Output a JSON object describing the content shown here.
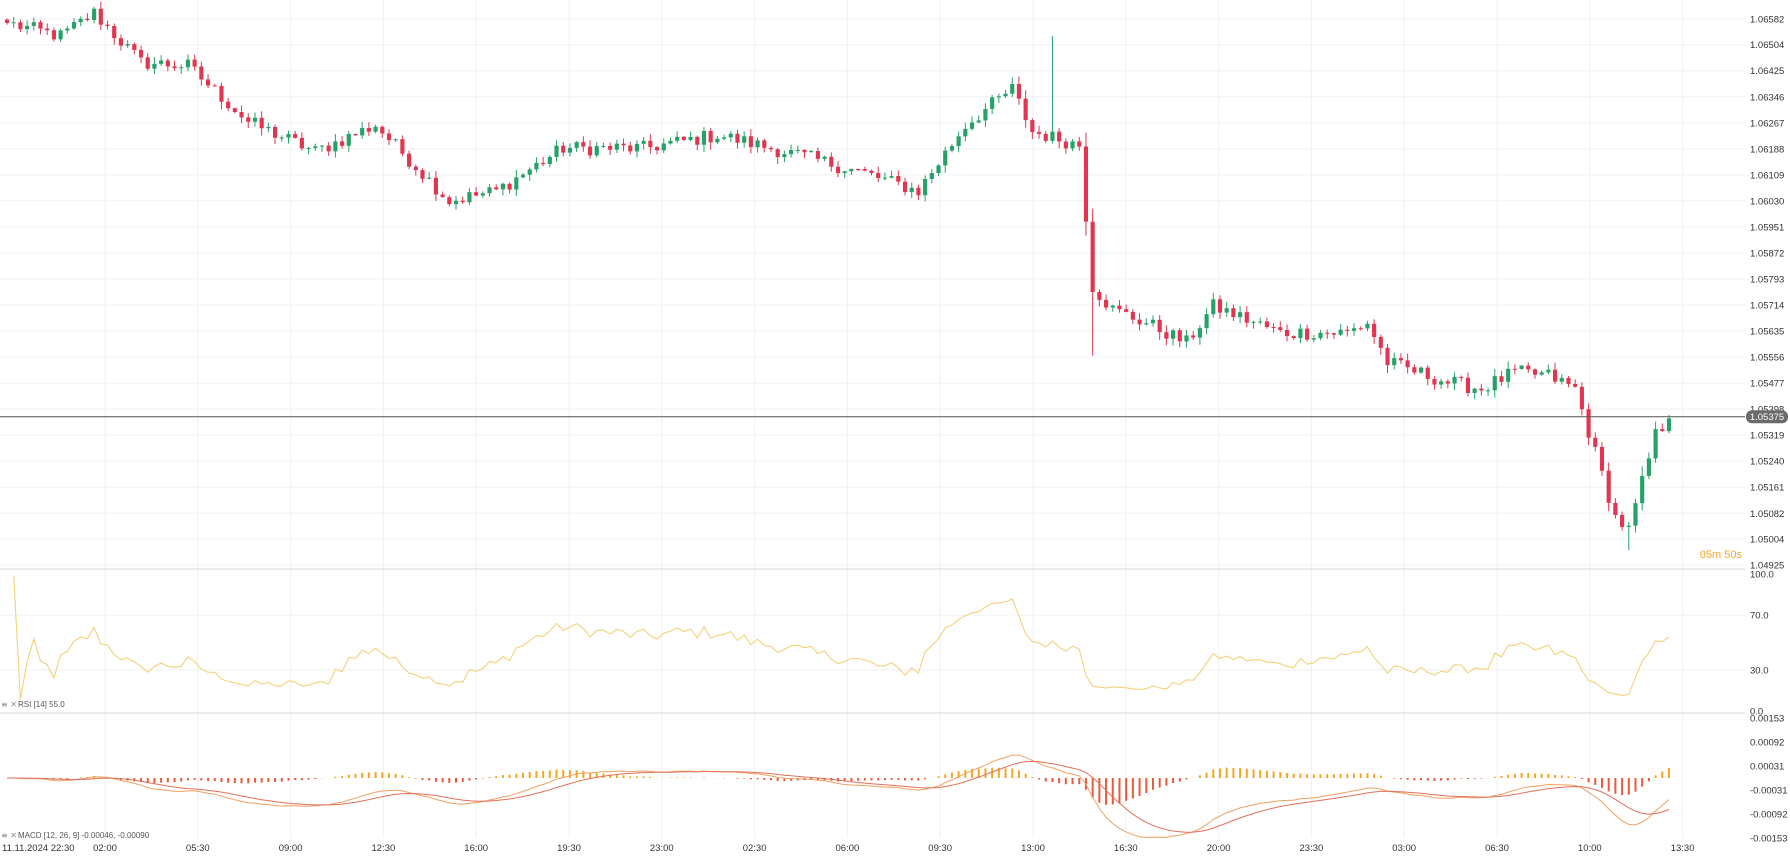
{
  "chart_data": [
    {
      "type": "candlestick",
      "title": "",
      "current_price": "1.05375",
      "countdown": "05m 50s",
      "price_axis_labels": [
        "1.06582",
        "1.06504",
        "1.06425",
        "1.06346",
        "1.06267",
        "1.06188",
        "1.06109",
        "1.06030",
        "1.05951",
        "1.05872",
        "1.05793",
        "1.05714",
        "1.05635",
        "1.05556",
        "1.05477",
        "1.05398",
        "1.05319",
        "1.05240",
        "1.05161",
        "1.05082",
        "1.05004",
        "1.04925"
      ],
      "ylim": [
        1.04925,
        1.06582
      ],
      "x_axis_labels": [
        "11.11.2024  22:30",
        "02:00",
        "05:30",
        "09:00",
        "12:30",
        "16:00",
        "19:30",
        "23:00",
        "02:30",
        "06:00",
        "09:30",
        "13:00",
        "16:30",
        "20:00",
        "23:30",
        "03:00",
        "06:30",
        "10:00",
        "13:30"
      ],
      "colors": {
        "up": "#26a269",
        "down": "#e0364f",
        "current_line": "#555555",
        "countdown": "#f5a623"
      },
      "anchors": [
        [
          0,
          1.0657
        ],
        [
          8,
          1.0653
        ],
        [
          13,
          1.066
        ],
        [
          20,
          1.0645
        ],
        [
          27,
          1.0644
        ],
        [
          36,
          1.0627
        ],
        [
          46,
          1.0618
        ],
        [
          55,
          1.0626
        ],
        [
          66,
          1.0603
        ],
        [
          73,
          1.0606
        ],
        [
          83,
          1.0619
        ],
        [
          95,
          1.0619
        ],
        [
          106,
          1.0623
        ],
        [
          118,
          1.0617
        ],
        [
          127,
          1.0612
        ],
        [
          136,
          1.0606
        ],
        [
          143,
          1.0626
        ],
        [
          150,
          1.0637
        ],
        [
          153,
          1.0624
        ],
        [
          160,
          1.062
        ],
        [
          162,
          1.0577
        ],
        [
          165,
          1.057
        ],
        [
          170,
          1.0566
        ],
        [
          176,
          1.056
        ],
        [
          180,
          1.0571
        ],
        [
          190,
          1.0563
        ],
        [
          200,
          1.0563
        ],
        [
          203,
          1.0566
        ],
        [
          206,
          1.0554
        ],
        [
          215,
          1.0548
        ],
        [
          220,
          1.0546
        ],
        [
          225,
          1.0551
        ],
        [
          230,
          1.055
        ],
        [
          234,
          1.0546
        ],
        [
          240,
          1.0507
        ],
        [
          242,
          1.0503
        ],
        [
          246,
          1.0532
        ],
        [
          248,
          1.0537
        ]
      ],
      "candle_count": 249
    },
    {
      "type": "line",
      "name": "RSI",
      "label": "RSI [14] 55.0",
      "levels": [
        "100.0",
        "70.0",
        "30.0",
        "0.0"
      ],
      "ylim": [
        0,
        100
      ],
      "color": "#f3d27a"
    },
    {
      "type": "bar",
      "name": "MACD",
      "label": "MACD [12, 26, 9] -0.00046, -0.00090",
      "axis_labels": [
        "0.00153",
        "0.00092",
        "0.00031",
        "-0.00031",
        "-0.00092",
        "-0.00153"
      ],
      "ylim": [
        -0.00153,
        0.00153
      ],
      "colors": {
        "hist_pos": "#f5a623",
        "hist_neg": "#ea5a3c",
        "macd": "#f0a060",
        "signal": "#e2705a"
      }
    }
  ]
}
